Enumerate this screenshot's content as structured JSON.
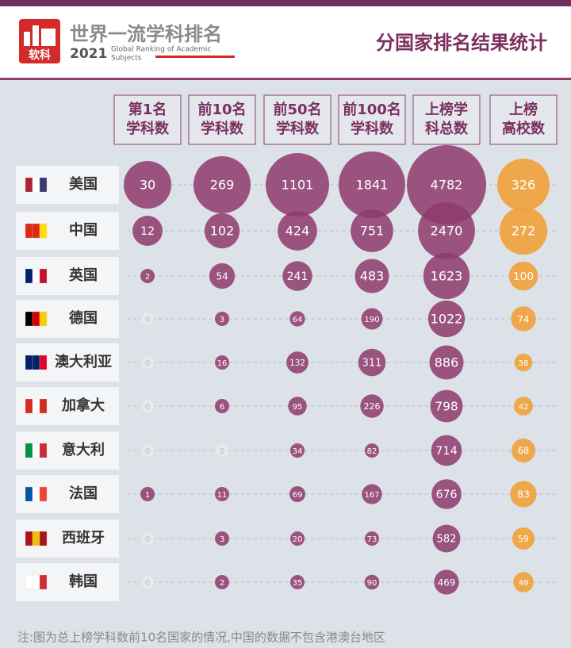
{
  "header": {
    "logo": "软科",
    "title": "世界一流学科排名",
    "year": "2021",
    "subtitle_line1": "Global Ranking of Academic",
    "subtitle_line2": "Subjects",
    "section_title": "分国家排名结果统计"
  },
  "table": {
    "columns": [
      [
        "第1名",
        "学科数"
      ],
      [
        "前10名",
        "学科数"
      ],
      [
        "前50名",
        "学科数"
      ],
      [
        "前100名",
        "学科数"
      ],
      [
        "上榜学",
        "科总数"
      ],
      [
        "上榜",
        "高校数"
      ]
    ],
    "rows": [
      {
        "country": "美国",
        "values": [
          30,
          269,
          1101,
          1841,
          4782,
          326
        ]
      },
      {
        "country": "中国",
        "values": [
          12,
          102,
          424,
          751,
          2470,
          272
        ]
      },
      {
        "country": "英国",
        "values": [
          2,
          54,
          241,
          483,
          1623,
          100
        ]
      },
      {
        "country": "德国",
        "values": [
          0,
          3,
          64,
          190,
          1022,
          74
        ]
      },
      {
        "country": "澳大利亚",
        "values": [
          0,
          16,
          132,
          311,
          886,
          38
        ]
      },
      {
        "country": "加拿大",
        "values": [
          0,
          6,
          95,
          226,
          798,
          42
        ]
      },
      {
        "country": "意大利",
        "values": [
          0,
          0,
          34,
          82,
          714,
          68
        ]
      },
      {
        "country": "法国",
        "values": [
          1,
          11,
          69,
          167,
          676,
          83
        ]
      },
      {
        "country": "西班牙",
        "values": [
          0,
          3,
          20,
          73,
          582,
          59
        ]
      },
      {
        "country": "韩国",
        "values": [
          0,
          2,
          35,
          90,
          469,
          49
        ]
      }
    ]
  },
  "footnote": "注:图为总上榜学科数前10名国家的情况,中国的数据不包含港澳台地区"
}
